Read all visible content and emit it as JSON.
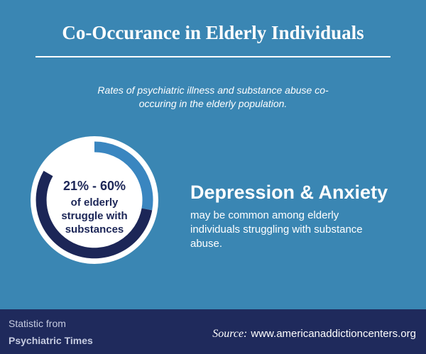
{
  "header": {
    "title": "Co-Occurance in Elderly Individuals",
    "subtitle_lines": [
      "Rates of psychiatric illness and substance abuse co-",
      "occuring in the elderly population."
    ]
  },
  "stat": {
    "figure": "21% - 60%",
    "lines": [
      "of elderly",
      "struggle with",
      "substances"
    ]
  },
  "heading": "Depression & Anxiety",
  "body_lines": [
    "may be common among elderly",
    "individuals struggling with substance",
    "abuse."
  ],
  "footer": {
    "from_label": "Statistic from",
    "from_name": "Psychiatric Times",
    "source_label": "Source:",
    "source_url": "www.americanaddictioncenters.org"
  }
}
